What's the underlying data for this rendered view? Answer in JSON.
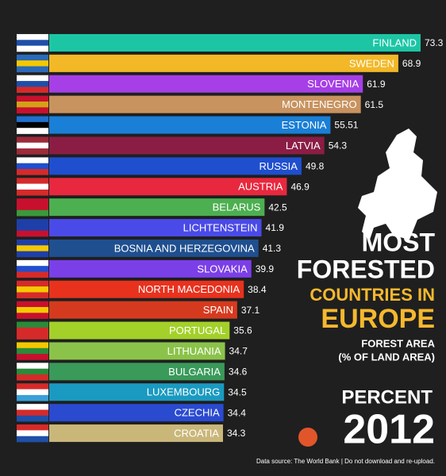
{
  "chart_data": {
    "type": "bar",
    "orientation": "horizontal",
    "title_lines": [
      "MOST",
      "FORESTED",
      "COUNTRIES IN",
      "EUROPE"
    ],
    "subtitle_lines": [
      "FOREST AREA",
      "(% OF LAND AREA)"
    ],
    "unit_label": "PERCENT",
    "period": "2012",
    "source": "Data source: The World Bank |  Do not download and re-upload.",
    "categories": [
      "FINLAND",
      "SWEDEN",
      "SLOVENIA",
      "MONTENEGRO",
      "ESTONIA",
      "LATVIA",
      "RUSSIA",
      "AUSTRIA",
      "BELARUS",
      "LICHTENSTEIN",
      "BOSNIA AND HERZEGOVINA",
      "SLOVAKIA",
      "NORTH MACEDONIA",
      "SPAIN",
      "PORTUGAL",
      "LITHUANIA",
      "BULGARIA",
      "LUXEMBOURG",
      "CZECHIA",
      "CROATIA"
    ],
    "values": [
      73.3,
      68.9,
      61.9,
      61.5,
      55.51,
      54.3,
      49.8,
      46.9,
      42.5,
      41.9,
      41.3,
      39.9,
      38.4,
      37.1,
      35.6,
      34.7,
      34.6,
      34.5,
      34.4,
      34.3
    ],
    "colors": [
      "#1cc6a5",
      "#f2b827",
      "#a63fe6",
      "#c8935f",
      "#1a7fd6",
      "#8b1d45",
      "#1f4fcf",
      "#e8283e",
      "#4caf50",
      "#4a4ae8",
      "#1f4f8f",
      "#7b3fe8",
      "#e8321e",
      "#d63a1e",
      "#a3d12a",
      "#8bc34a",
      "#3a9a5a",
      "#1a9ac0",
      "#2a4ad0",
      "#c9b77a"
    ],
    "xlim": [
      0,
      73.3
    ]
  }
}
